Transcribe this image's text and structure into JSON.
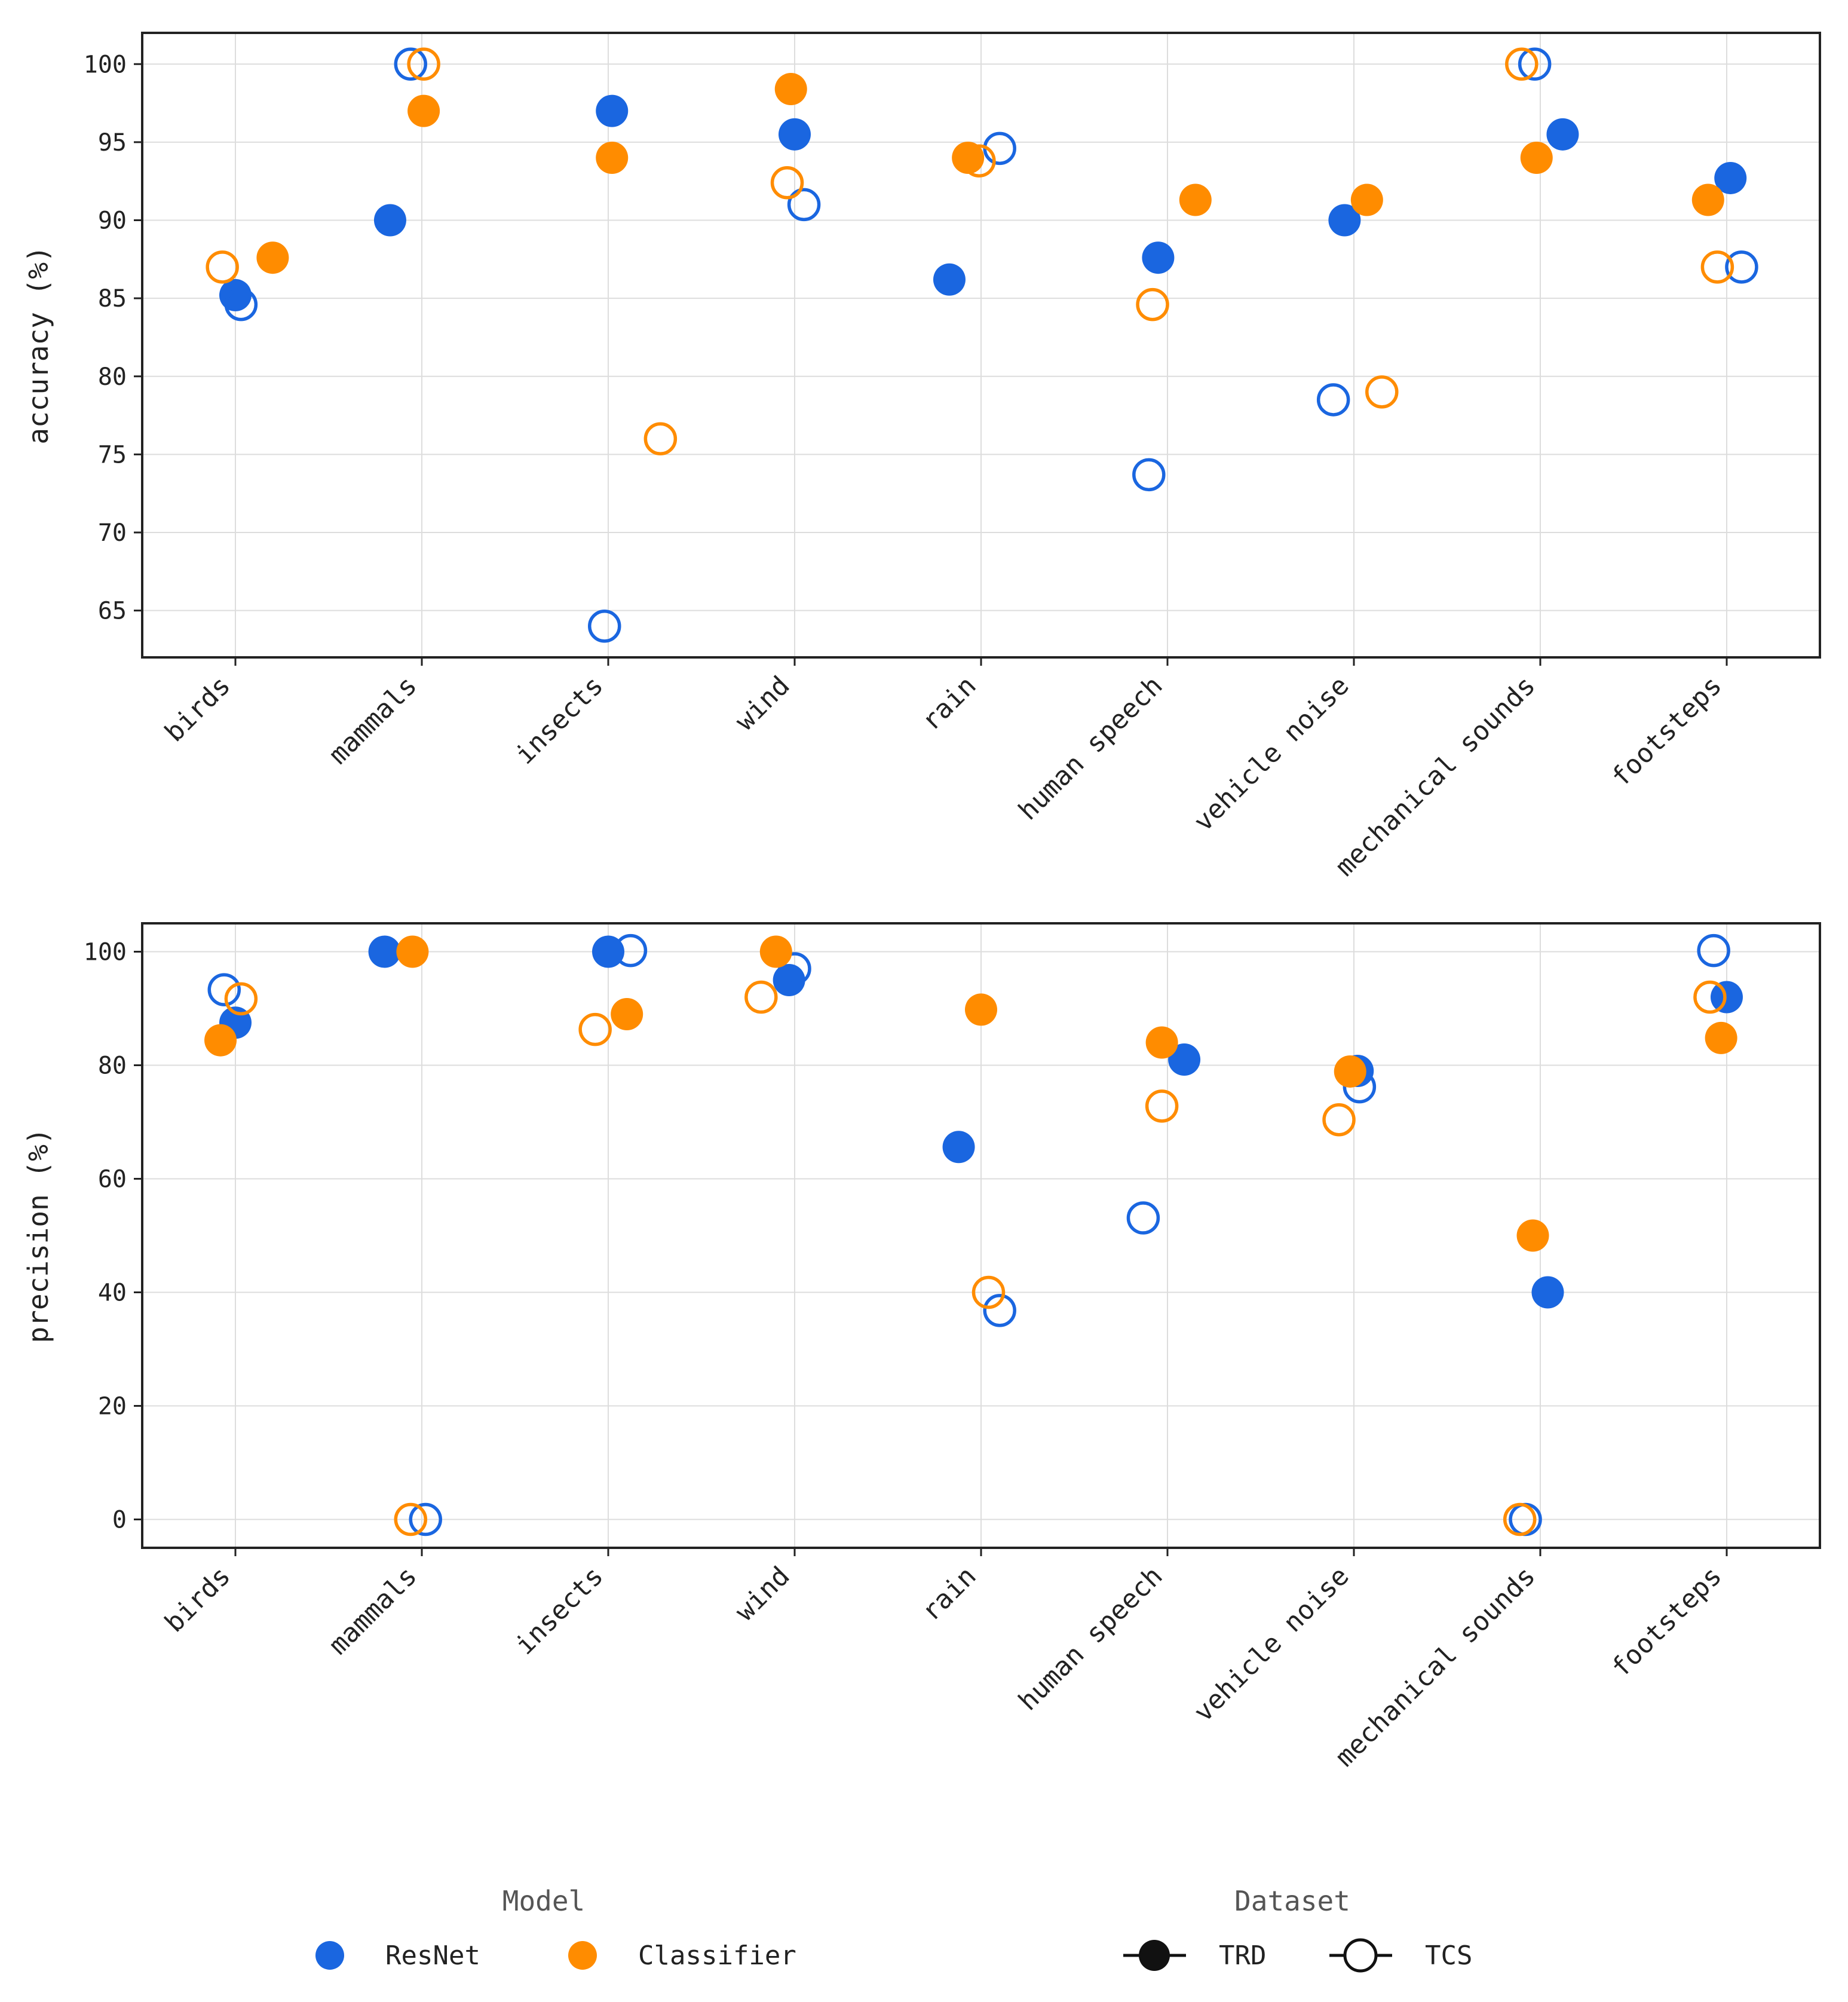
{
  "colors": {
    "ResNet": "#1a66e0",
    "Classifier": "#ff8c00",
    "grid": "#dddddd",
    "axis": "#222222"
  },
  "chart_data": [
    {
      "type": "scatter",
      "ylabel": "accuracy (%)",
      "xlabel": "",
      "categories": [
        "birds",
        "mammals",
        "insects",
        "wind",
        "rain",
        "human speech",
        "vehicle noise",
        "mechanical sounds",
        "footsteps"
      ],
      "ylim": [
        62,
        102
      ],
      "yticks": [
        65,
        70,
        75,
        80,
        85,
        90,
        95,
        100
      ],
      "grid": true,
      "series": [
        {
          "name": "ResNet TRD",
          "model": "ResNet",
          "dataset": "TRD",
          "filled": true,
          "offsets": [
            0.0,
            -0.17,
            0.02,
            0.0,
            -0.17,
            -0.05,
            -0.05,
            0.12,
            0.02
          ],
          "values": [
            85.2,
            90.0,
            97.0,
            95.5,
            86.2,
            87.6,
            90.0,
            95.5,
            92.7
          ]
        },
        {
          "name": "ResNet TCS",
          "model": "ResNet",
          "dataset": "TCS",
          "filled": false,
          "offsets": [
            0.03,
            -0.06,
            -0.02,
            0.05,
            0.1,
            -0.1,
            -0.11,
            -0.03,
            0.08
          ],
          "values": [
            84.6,
            100.0,
            64.0,
            91.0,
            94.6,
            73.7,
            78.5,
            100.0,
            87.0
          ]
        },
        {
          "name": "Classifier TRD",
          "model": "Classifier",
          "dataset": "TRD",
          "filled": true,
          "offsets": [
            0.2,
            0.01,
            0.02,
            -0.02,
            -0.07,
            0.15,
            0.07,
            -0.02,
            -0.1
          ],
          "values": [
            87.6,
            97.0,
            94.0,
            98.4,
            94.0,
            91.3,
            91.3,
            94.0,
            91.3
          ]
        },
        {
          "name": "Classifier TCS",
          "model": "Classifier",
          "dataset": "TCS",
          "filled": false,
          "offsets": [
            -0.07,
            0.01,
            0.28,
            -0.04,
            -0.01,
            -0.08,
            0.15,
            -0.1,
            -0.05
          ],
          "values": [
            87.0,
            100.0,
            76.0,
            92.4,
            93.8,
            84.6,
            79.0,
            100.0,
            87.0
          ]
        }
      ]
    },
    {
      "type": "scatter",
      "ylabel": "precision (%)",
      "xlabel": "",
      "categories": [
        "birds",
        "mammals",
        "insects",
        "wind",
        "rain",
        "human speech",
        "vehicle noise",
        "mechanical sounds",
        "footsteps"
      ],
      "ylim": [
        -5,
        105
      ],
      "yticks": [
        0,
        20,
        40,
        60,
        80,
        100
      ],
      "grid": true,
      "series": [
        {
          "name": "ResNet TRD",
          "model": "ResNet",
          "dataset": "TRD",
          "filled": true,
          "offsets": [
            0.0,
            -0.2,
            0.0,
            -0.03,
            -0.12,
            0.09,
            0.02,
            0.04,
            0.0
          ],
          "values": [
            87.5,
            100.0,
            100.0,
            95.0,
            65.6,
            81.0,
            79.0,
            40.0,
            92.0
          ]
        },
        {
          "name": "ResNet TCS",
          "model": "ResNet",
          "dataset": "TCS",
          "filled": false,
          "offsets": [
            -0.06,
            0.02,
            0.12,
            0.0,
            0.1,
            -0.13,
            0.03,
            -0.08,
            -0.07
          ],
          "values": [
            93.3,
            0.0,
            100.2,
            97.0,
            36.8,
            53.1,
            76.2,
            0.0,
            100.2
          ]
        },
        {
          "name": "Classifier TRD",
          "model": "Classifier",
          "dataset": "TRD",
          "filled": true,
          "offsets": [
            -0.08,
            -0.05,
            0.1,
            -0.1,
            0.0,
            -0.03,
            -0.02,
            -0.04,
            -0.03
          ],
          "values": [
            84.4,
            100.0,
            89.0,
            100.0,
            89.8,
            84.0,
            78.9,
            50.0,
            84.8
          ]
        },
        {
          "name": "Classifier TCS",
          "model": "Classifier",
          "dataset": "TCS",
          "filled": false,
          "offsets": [
            0.03,
            -0.06,
            -0.07,
            -0.18,
            0.04,
            -0.03,
            -0.08,
            -0.11,
            -0.09
          ],
          "values": [
            91.7,
            0.0,
            86.3,
            92.0,
            40.0,
            72.8,
            70.4,
            0.0,
            92.0
          ]
        }
      ]
    }
  ],
  "legend": {
    "model_title": "Model",
    "model_items": [
      {
        "label": "ResNet",
        "color": "#1a66e0"
      },
      {
        "label": "Classifier",
        "color": "#ff8c00"
      }
    ],
    "dataset_title": "Dataset",
    "dataset_items": [
      {
        "label": "TRD",
        "filled": true
      },
      {
        "label": "TCS",
        "filled": false
      }
    ],
    "placement": "bottom"
  }
}
